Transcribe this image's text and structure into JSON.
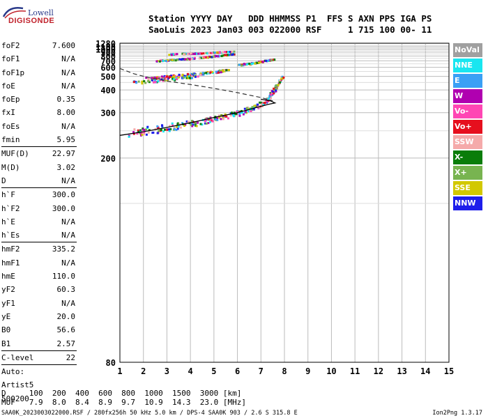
{
  "logo": {
    "top": "Lowell",
    "bottom": "DIGISONDE"
  },
  "header": {
    "line1": "Station YYYY DAY   DDD HHMMSS P1  FFS S AXN PPS IGA PS",
    "line2": "SaoLuis 2023 Jan03 003 022000 RSF     1 715 100 00- 11"
  },
  "params": [
    {
      "label": "foF2",
      "value": "7.600"
    },
    {
      "label": "foF1",
      "value": "N/A"
    },
    {
      "label": "foF1p",
      "value": "N/A"
    },
    {
      "label": "foE",
      "value": "N/A"
    },
    {
      "label": "foEp",
      "value": "0.35"
    },
    {
      "label": "fxI",
      "value": "8.00"
    },
    {
      "label": "foEs",
      "value": "N/A"
    },
    {
      "label": "fmin",
      "value": "5.95"
    },
    {
      "label": "MUF(D)",
      "value": "22.97",
      "sep": true
    },
    {
      "label": "M(D)",
      "value": "3.02"
    },
    {
      "label": "D",
      "value": "N/A"
    },
    {
      "label": "h`F",
      "value": "300.0",
      "sep": true
    },
    {
      "label": "h`F2",
      "value": "300.0"
    },
    {
      "label": "h`E",
      "value": "N/A"
    },
    {
      "label": "h`Es",
      "value": "N/A"
    },
    {
      "label": "hmF2",
      "value": "335.2",
      "sep": true
    },
    {
      "label": "hmF1",
      "value": "N/A"
    },
    {
      "label": "hmE",
      "value": "110.0"
    },
    {
      "label": "yF2",
      "value": "60.3"
    },
    {
      "label": "yF1",
      "value": "N/A"
    },
    {
      "label": "yE",
      "value": "20.0"
    },
    {
      "label": "B0",
      "value": "56.6"
    },
    {
      "label": "B1",
      "value": "2.57"
    },
    {
      "label": "C-level",
      "value": "22",
      "sep": true
    },
    {
      "label": "Auto:",
      "value": "",
      "sep": true
    },
    {
      "label": "Artist5",
      "value": ""
    },
    {
      "label": "500200",
      "value": ""
    }
  ],
  "legend": [
    {
      "label": "NoVal",
      "color": "#a0a0a0"
    },
    {
      "label": "NNE",
      "color": "#19e6f0"
    },
    {
      "label": "E",
      "color": "#3aa0f5"
    },
    {
      "label": "W",
      "color": "#b000b0"
    },
    {
      "label": "Vo-",
      "color": "#ff46b4"
    },
    {
      "label": "Vo+",
      "color": "#e60f1e"
    },
    {
      "label": "SSW",
      "color": "#f5aaaa"
    },
    {
      "label": "X-",
      "color": "#0a7d0a"
    },
    {
      "label": "X+",
      "color": "#78b450"
    },
    {
      "label": "SSE",
      "color": "#d2c800"
    },
    {
      "label": "NNW",
      "color": "#1e1eeb"
    }
  ],
  "muf_table": {
    "line1": "D     100  200  400  600  800  1000  1500  3000 [km]",
    "line2": "MUF   7.9  8.0  8.4  8.9  9.7  10.9  14.3  23.0 [MHz]"
  },
  "footer": "SAA0K_2023003022000.RSF / 280fx256h 50 kHz 5.0 km / DPS-4 SAA0K 903 / 2.6 S 315.8 E",
  "version": "Ion2Png 1.3.17",
  "chart_data": {
    "type": "scatter",
    "title": "",
    "xlabel": "",
    "ylabel": "",
    "xlim": [
      1,
      15
    ],
    "ylim": [
      80,
      1280
    ],
    "y_scale": "reciprocal",
    "grid": true,
    "x_ticks": [
      1,
      2,
      3,
      4,
      5,
      6,
      7,
      8,
      9,
      10,
      11,
      12,
      13,
      14,
      15
    ],
    "y_ticks": [
      80,
      200,
      300,
      400,
      500,
      600,
      700,
      800,
      900,
      1000,
      1100,
      1280
    ],
    "series": [
      {
        "values": [
          [
            1.3,
            245
          ],
          [
            2.0,
            252
          ],
          [
            2.8,
            258
          ],
          [
            3.5,
            265
          ],
          [
            4.2,
            272
          ],
          [
            4.8,
            280
          ],
          [
            5.4,
            290
          ],
          [
            6.0,
            300
          ],
          [
            6.5,
            315
          ],
          [
            7.0,
            335
          ],
          [
            7.3,
            360
          ],
          [
            7.5,
            395
          ],
          [
            7.7,
            445
          ],
          [
            7.9,
            500
          ]
        ]
      },
      {
        "values": [
          [
            2.0,
            490
          ],
          [
            2.8,
            500
          ],
          [
            3.4,
            512
          ],
          [
            4.0,
            525
          ],
          [
            4.6,
            540
          ],
          [
            5.2,
            560
          ],
          [
            5.6,
            580
          ]
        ]
      },
      {
        "values": [
          [
            1.5,
            455
          ],
          [
            2.5,
            470
          ],
          [
            3.5,
            490
          ],
          [
            4.5,
            520
          ]
        ]
      },
      {
        "values": [
          [
            2.5,
            710
          ],
          [
            3.2,
            730
          ],
          [
            4.0,
            760
          ],
          [
            4.8,
            800
          ],
          [
            5.4,
            840
          ],
          [
            5.8,
            870
          ]
        ]
      },
      {
        "values": [
          [
            3.0,
            860
          ],
          [
            3.8,
            880
          ],
          [
            4.6,
            900
          ],
          [
            5.2,
            920
          ],
          [
            5.8,
            940
          ]
        ]
      },
      {
        "values": [
          [
            6.0,
            640
          ],
          [
            6.5,
            665
          ],
          [
            7.0,
            700
          ],
          [
            7.5,
            740
          ]
        ]
      }
    ],
    "profile_solid": [
      [
        1,
        240
      ],
      [
        2,
        248
      ],
      [
        3,
        258
      ],
      [
        4,
        270
      ],
      [
        5,
        285
      ],
      [
        6,
        300
      ],
      [
        6.8,
        318
      ],
      [
        7.3,
        330
      ],
      [
        7.6,
        336
      ],
      [
        7.4,
        345
      ],
      [
        7.0,
        352
      ]
    ],
    "profile_dashed": [
      [
        1,
        585
      ],
      [
        1.6,
        525
      ],
      [
        2.2,
        490
      ],
      [
        3,
        460
      ],
      [
        4,
        435
      ],
      [
        5,
        410
      ],
      [
        6,
        385
      ],
      [
        7,
        360
      ],
      [
        7.5,
        345
      ]
    ]
  }
}
